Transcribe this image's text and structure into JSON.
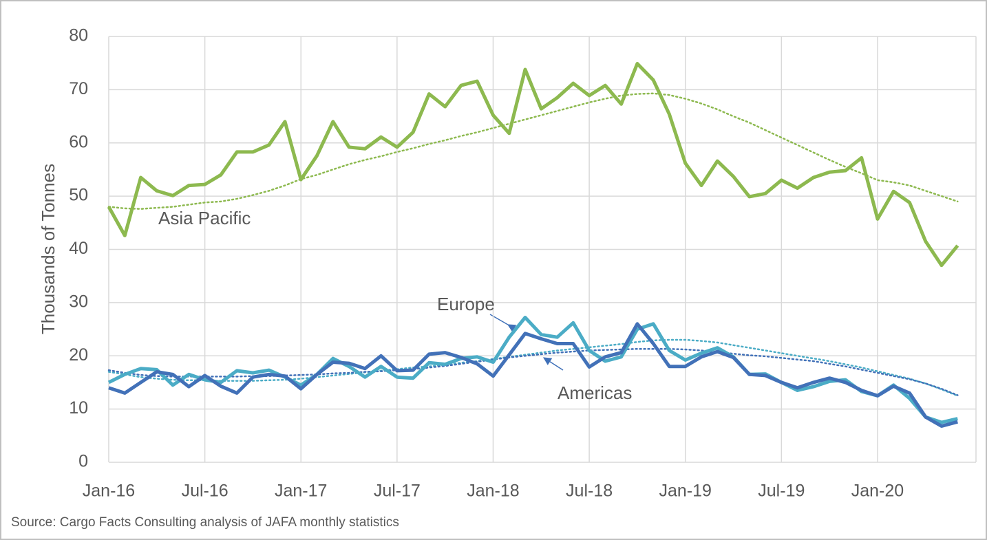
{
  "chart_data": {
    "type": "line",
    "y_axis_label": "Thousands of Tonnes",
    "source": "Source: Cargo Facts Consulting analysis of JAFA monthly statistics",
    "categories": [
      "Jan-16",
      null,
      null,
      null,
      null,
      null,
      "Jul-16",
      null,
      null,
      null,
      null,
      null,
      "Jan-17",
      null,
      null,
      null,
      null,
      null,
      "Jul-17",
      null,
      null,
      null,
      null,
      null,
      "Jan-18",
      null,
      null,
      null,
      null,
      null,
      "Jul-18",
      null,
      null,
      null,
      null,
      null,
      "Jan-19",
      null,
      null,
      null,
      null,
      null,
      "Jul-19",
      null,
      null,
      null,
      null,
      null,
      "Jan-20",
      null,
      null,
      null,
      null,
      null
    ],
    "ylim": [
      0,
      80
    ],
    "yticks": [
      0,
      10,
      20,
      30,
      40,
      50,
      60,
      70,
      80
    ],
    "grid": true,
    "series": [
      {
        "name": "Asia Pacific",
        "color": "#8db94f",
        "values": [
          48,
          42.6,
          53.5,
          51,
          50.1,
          52,
          52.2,
          54,
          58.3,
          58.3,
          59.6,
          64,
          53.1,
          57.6,
          64,
          59.2,
          58.9,
          61.1,
          59.2,
          62,
          69.2,
          66.8,
          70.8,
          71.6,
          65.2,
          61.8,
          73.8,
          66.4,
          68.5,
          71.2,
          68.9,
          70.8,
          67.3,
          74.9,
          71.8,
          65.4,
          56.2,
          52,
          56.6,
          53.7,
          49.9,
          50.5,
          53,
          51.5,
          53.5,
          54.5,
          54.8,
          57.2,
          45.7,
          50.9,
          48.8,
          41.5,
          37,
          40.7
        ],
        "trend": [
          48,
          47.7,
          47.6,
          47.8,
          48,
          48.4,
          48.8,
          49,
          49.5,
          50.2,
          51,
          52,
          53.2,
          54,
          55,
          56,
          56.8,
          57.5,
          58.3,
          59,
          59.8,
          60.5,
          61.3,
          62,
          62.8,
          63.6,
          64.4,
          65.2,
          66,
          66.8,
          67.6,
          68.3,
          68.9,
          69.2,
          69.3,
          69,
          68.3,
          67.4,
          66.3,
          65,
          63.8,
          62.4,
          61,
          59.6,
          58.2,
          56.8,
          55.5,
          54.3,
          53,
          52.6,
          52,
          51,
          50,
          49
        ]
      },
      {
        "name": "Europe",
        "color": "#4bacc6",
        "values": [
          15,
          16.5,
          17.6,
          17.4,
          14.5,
          16.5,
          15.5,
          15,
          17.2,
          16.8,
          17.3,
          16,
          14.5,
          16.5,
          19.5,
          18,
          16,
          18,
          16,
          15.8,
          18.7,
          18.4,
          19.5,
          19.8,
          18.8,
          23.5,
          27.2,
          24,
          23.5,
          26.2,
          21,
          19,
          19.8,
          25,
          26,
          21,
          19.2,
          20.5,
          21.5,
          19.8,
          16.5,
          16.6,
          15,
          13.5,
          14.2,
          15.2,
          15.5,
          13.3,
          12.5,
          14.5,
          12,
          8.5,
          7.5,
          8.2
        ],
        "trend": [
          17,
          16.5,
          16,
          15.7,
          15.5,
          15.4,
          15.4,
          15.3,
          15.3,
          15.3,
          15.4,
          15.5,
          15.7,
          16,
          16.3,
          16.6,
          16.9,
          17.2,
          17.5,
          17.8,
          18,
          18.3,
          18.7,
          19,
          19.4,
          19.8,
          20.2,
          20.6,
          21,
          21.3,
          21.6,
          21.9,
          22.2,
          22.6,
          22.9,
          23,
          23,
          22.8,
          22.5,
          22,
          21.5,
          21,
          20.5,
          20,
          19.5,
          19,
          18.4,
          17.8,
          17.1,
          16.4,
          15.7,
          14.8,
          13.7,
          12.5
        ]
      },
      {
        "name": "Americas",
        "color": "#4271b8",
        "values": [
          14,
          13,
          15,
          17,
          16.5,
          14.2,
          16.3,
          14.3,
          13,
          16,
          16.5,
          16.2,
          13.8,
          16.5,
          18.8,
          18.6,
          17.6,
          20,
          17.2,
          17.3,
          20.3,
          20.6,
          19.7,
          18.5,
          16.2,
          20.2,
          24.2,
          23.2,
          22.3,
          22.3,
          17.9,
          19.8,
          20.6,
          26,
          22.3,
          18,
          18,
          19.8,
          20.8,
          19.7,
          16.5,
          16.3,
          15,
          14,
          15,
          15.8,
          15,
          13.5,
          12.5,
          14.3,
          13,
          8.5,
          6.8,
          7.6
        ],
        "trend": [
          17.3,
          16.8,
          16.4,
          16.2,
          16.1,
          16.1,
          16.1,
          16.1,
          16.1,
          16.2,
          16.2,
          16.3,
          16.4,
          16.5,
          16.7,
          16.8,
          17,
          17.1,
          17.3,
          17.5,
          17.8,
          18.1,
          18.5,
          18.9,
          19.3,
          19.7,
          20,
          20.3,
          20.6,
          20.8,
          21,
          21.1,
          21.2,
          21.3,
          21.3,
          21.3,
          21.2,
          21,
          20.7,
          20.4,
          20.1,
          19.9,
          19.6,
          19.3,
          19,
          18.5,
          18,
          17.4,
          16.8,
          16.2,
          15.6,
          14.8,
          13.8,
          12.6
        ]
      }
    ]
  }
}
